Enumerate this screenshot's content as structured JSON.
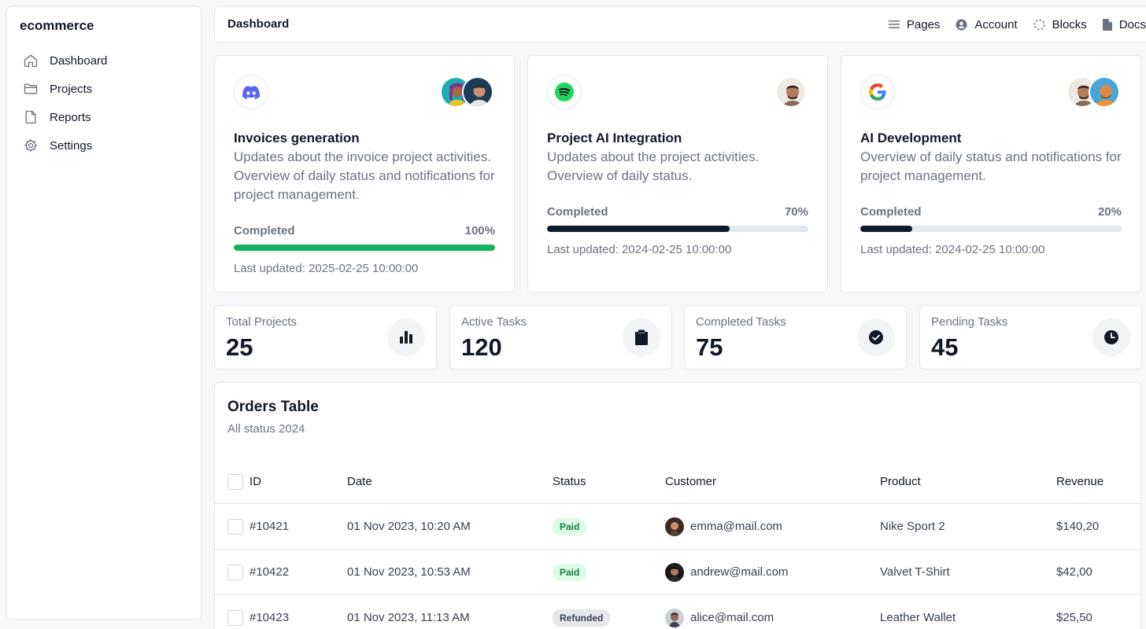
{
  "sidebar": {
    "brand": "ecommerce",
    "items": [
      {
        "label": "Dashboard",
        "icon": "home-icon"
      },
      {
        "label": "Projects",
        "icon": "folder-icon"
      },
      {
        "label": "Reports",
        "icon": "file-icon"
      },
      {
        "label": "Settings",
        "icon": "gear-icon"
      }
    ]
  },
  "topbar": {
    "breadcrumb": "Dashboard",
    "links": [
      {
        "label": "Pages",
        "icon": "menu-icon"
      },
      {
        "label": "Account",
        "icon": "user-circle-icon"
      },
      {
        "label": "Blocks",
        "icon": "dashed-circle-icon"
      },
      {
        "label": "Docs",
        "icon": "document-icon"
      }
    ]
  },
  "projects": [
    {
      "logo": "discord-icon",
      "title": "Invoices generation",
      "description": "Updates about the invoice project activities. Overview of daily status and notifications for project management.",
      "progress_label": "Completed",
      "progress_text": "100%",
      "progress": 100,
      "progress_color": "#16b364",
      "updated": "Last updated: 2025-02-25 10:00:00"
    },
    {
      "logo": "spotify-icon",
      "title": "Project AI Integration",
      "description": "Updates about the project activities. Overview of daily status.",
      "progress_label": "Completed",
      "progress_text": "70%",
      "progress": 70,
      "progress_color": "#0f1b2d",
      "updated": "Last updated: 2024-02-25 10:00:00"
    },
    {
      "logo": "google-icon",
      "title": "AI Development",
      "description": "Overview of daily status and notifications for project management.",
      "progress_label": "Completed",
      "progress_text": "20%",
      "progress": 20,
      "progress_color": "#0f1b2d",
      "updated": "Last updated: 2024-02-25 10:00:00"
    }
  ],
  "stats": [
    {
      "label": "Total Projects",
      "value": "25",
      "icon": "bar-chart-icon"
    },
    {
      "label": "Active Tasks",
      "value": "120",
      "icon": "clipboard-icon"
    },
    {
      "label": "Completed Tasks",
      "value": "75",
      "icon": "check-circle-icon"
    },
    {
      "label": "Pending Tasks",
      "value": "45",
      "icon": "clock-icon"
    }
  ],
  "orders": {
    "title": "Orders Table",
    "subtitle": "All status 2024",
    "columns": [
      "ID",
      "Date",
      "Status",
      "Customer",
      "Product",
      "Revenue"
    ],
    "rows": [
      {
        "id": "#10421",
        "date": "01 Nov 2023, 10:20 AM",
        "status": "Paid",
        "customer": "emma@mail.com",
        "product": "Nike Sport 2",
        "revenue": "$140,20"
      },
      {
        "id": "#10422",
        "date": "01 Nov 2023, 10:53 AM",
        "status": "Paid",
        "customer": "andrew@mail.com",
        "product": "Valvet T-Shirt",
        "revenue": "$42,00"
      },
      {
        "id": "#10423",
        "date": "01 Nov 2023, 11:13 AM",
        "status": "Refunded",
        "customer": "alice@mail.com",
        "product": "Leather Wallet",
        "revenue": "$25,50"
      }
    ]
  }
}
